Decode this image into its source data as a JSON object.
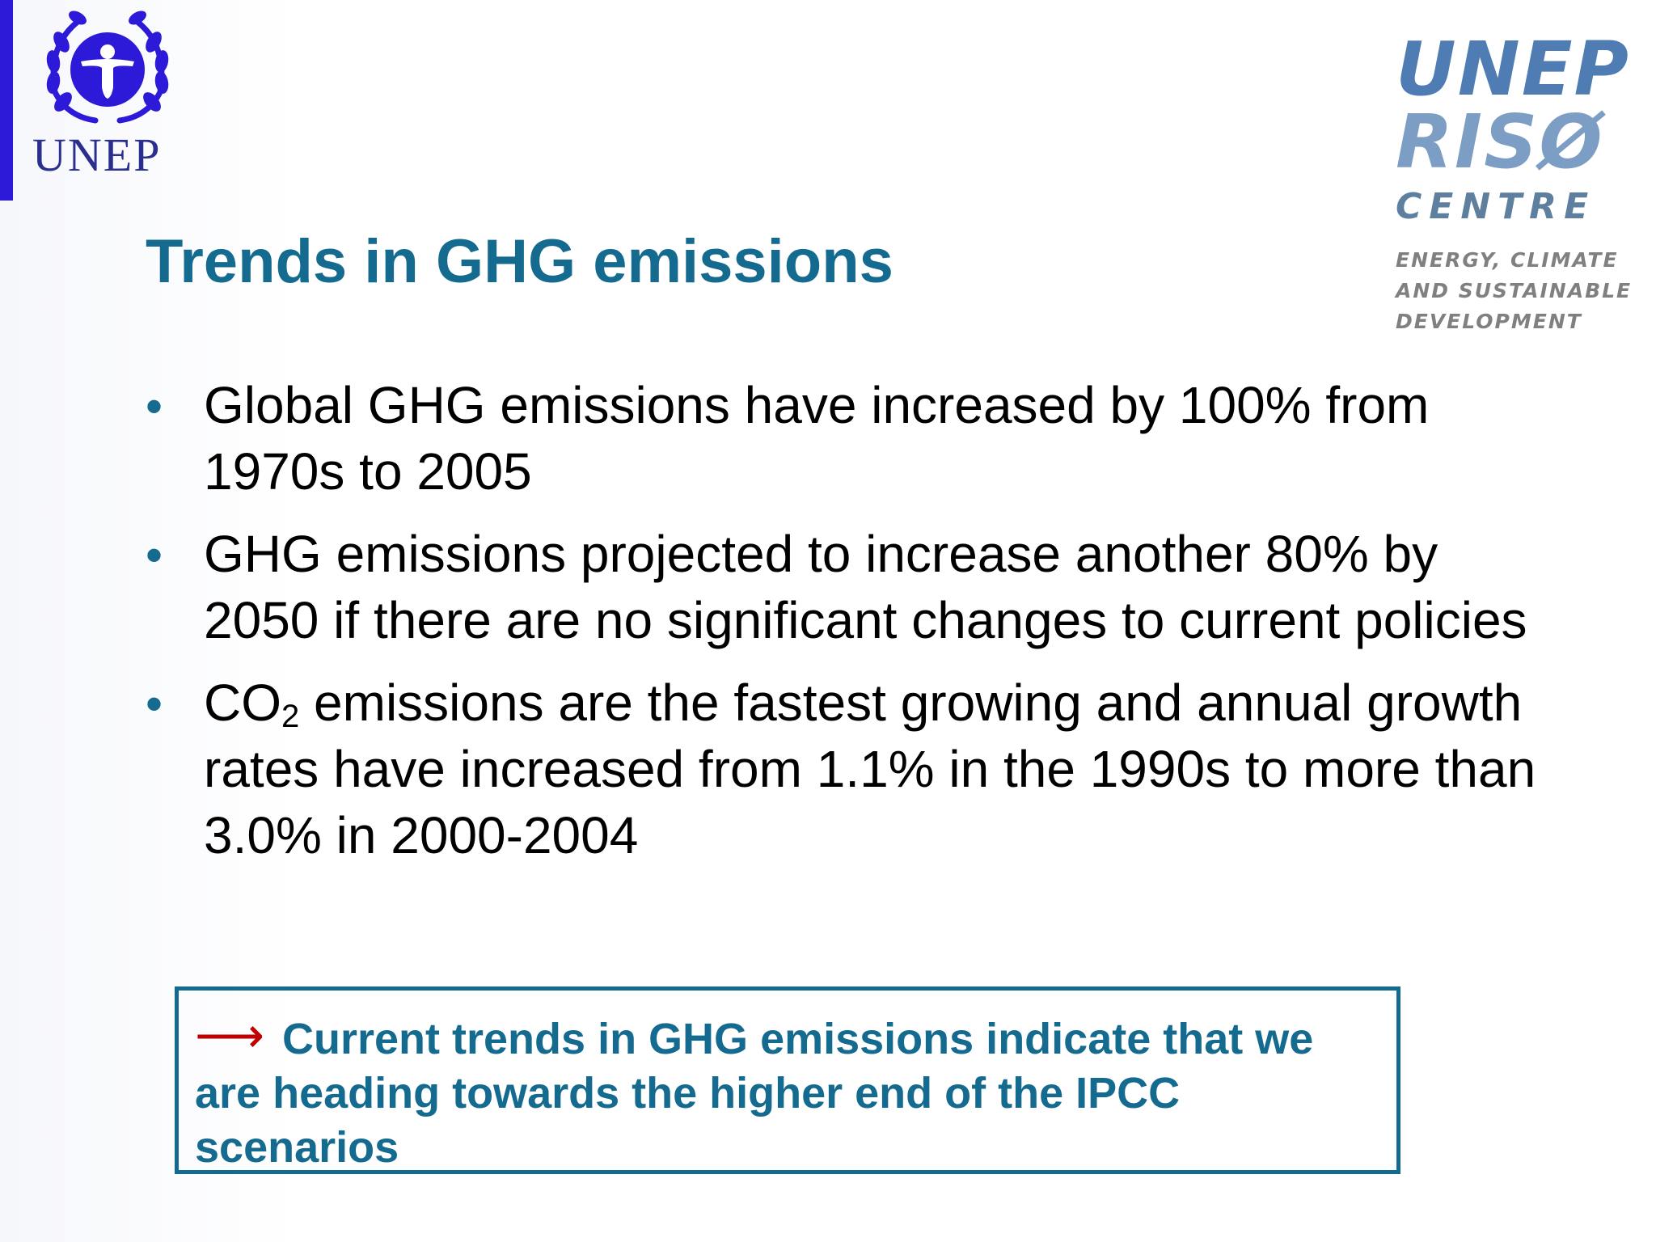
{
  "slide": {
    "title": "Trends in GHG emissions",
    "bullets": [
      {
        "text": "Global GHG emissions have increased by 100% from 1970s to 2005"
      },
      {
        "text": "GHG emissions projected to increase another 80% by 2050 if there are no significant changes to current policies"
      },
      {
        "prefix": "CO",
        "subscript": "2",
        "text": " emissions are the fastest growing and annual growth rates have increased from 1.1% in the 1990s to more than 3.0% in 2000-2004"
      }
    ],
    "callout": {
      "icon": "arrow-right-icon",
      "text": "Current trends in GHG emissions indicate that we are heading towards the higher end of the IPCC scenarios"
    }
  },
  "logos": {
    "unep": {
      "wordmark": "UNEP"
    },
    "riso": {
      "line1": "UNEP",
      "line2": "RISØ",
      "line3": "CENTRE",
      "tagline": [
        "ENERGY, CLIMATE",
        "AND SUSTAINABLE",
        "DEVELOPMENT"
      ]
    }
  },
  "colors": {
    "title": "#156b8f",
    "bullet": "#156b8f",
    "callout_border": "#156b8f",
    "arrow": "#c00000",
    "unep_blue": "#2d1ad8"
  }
}
